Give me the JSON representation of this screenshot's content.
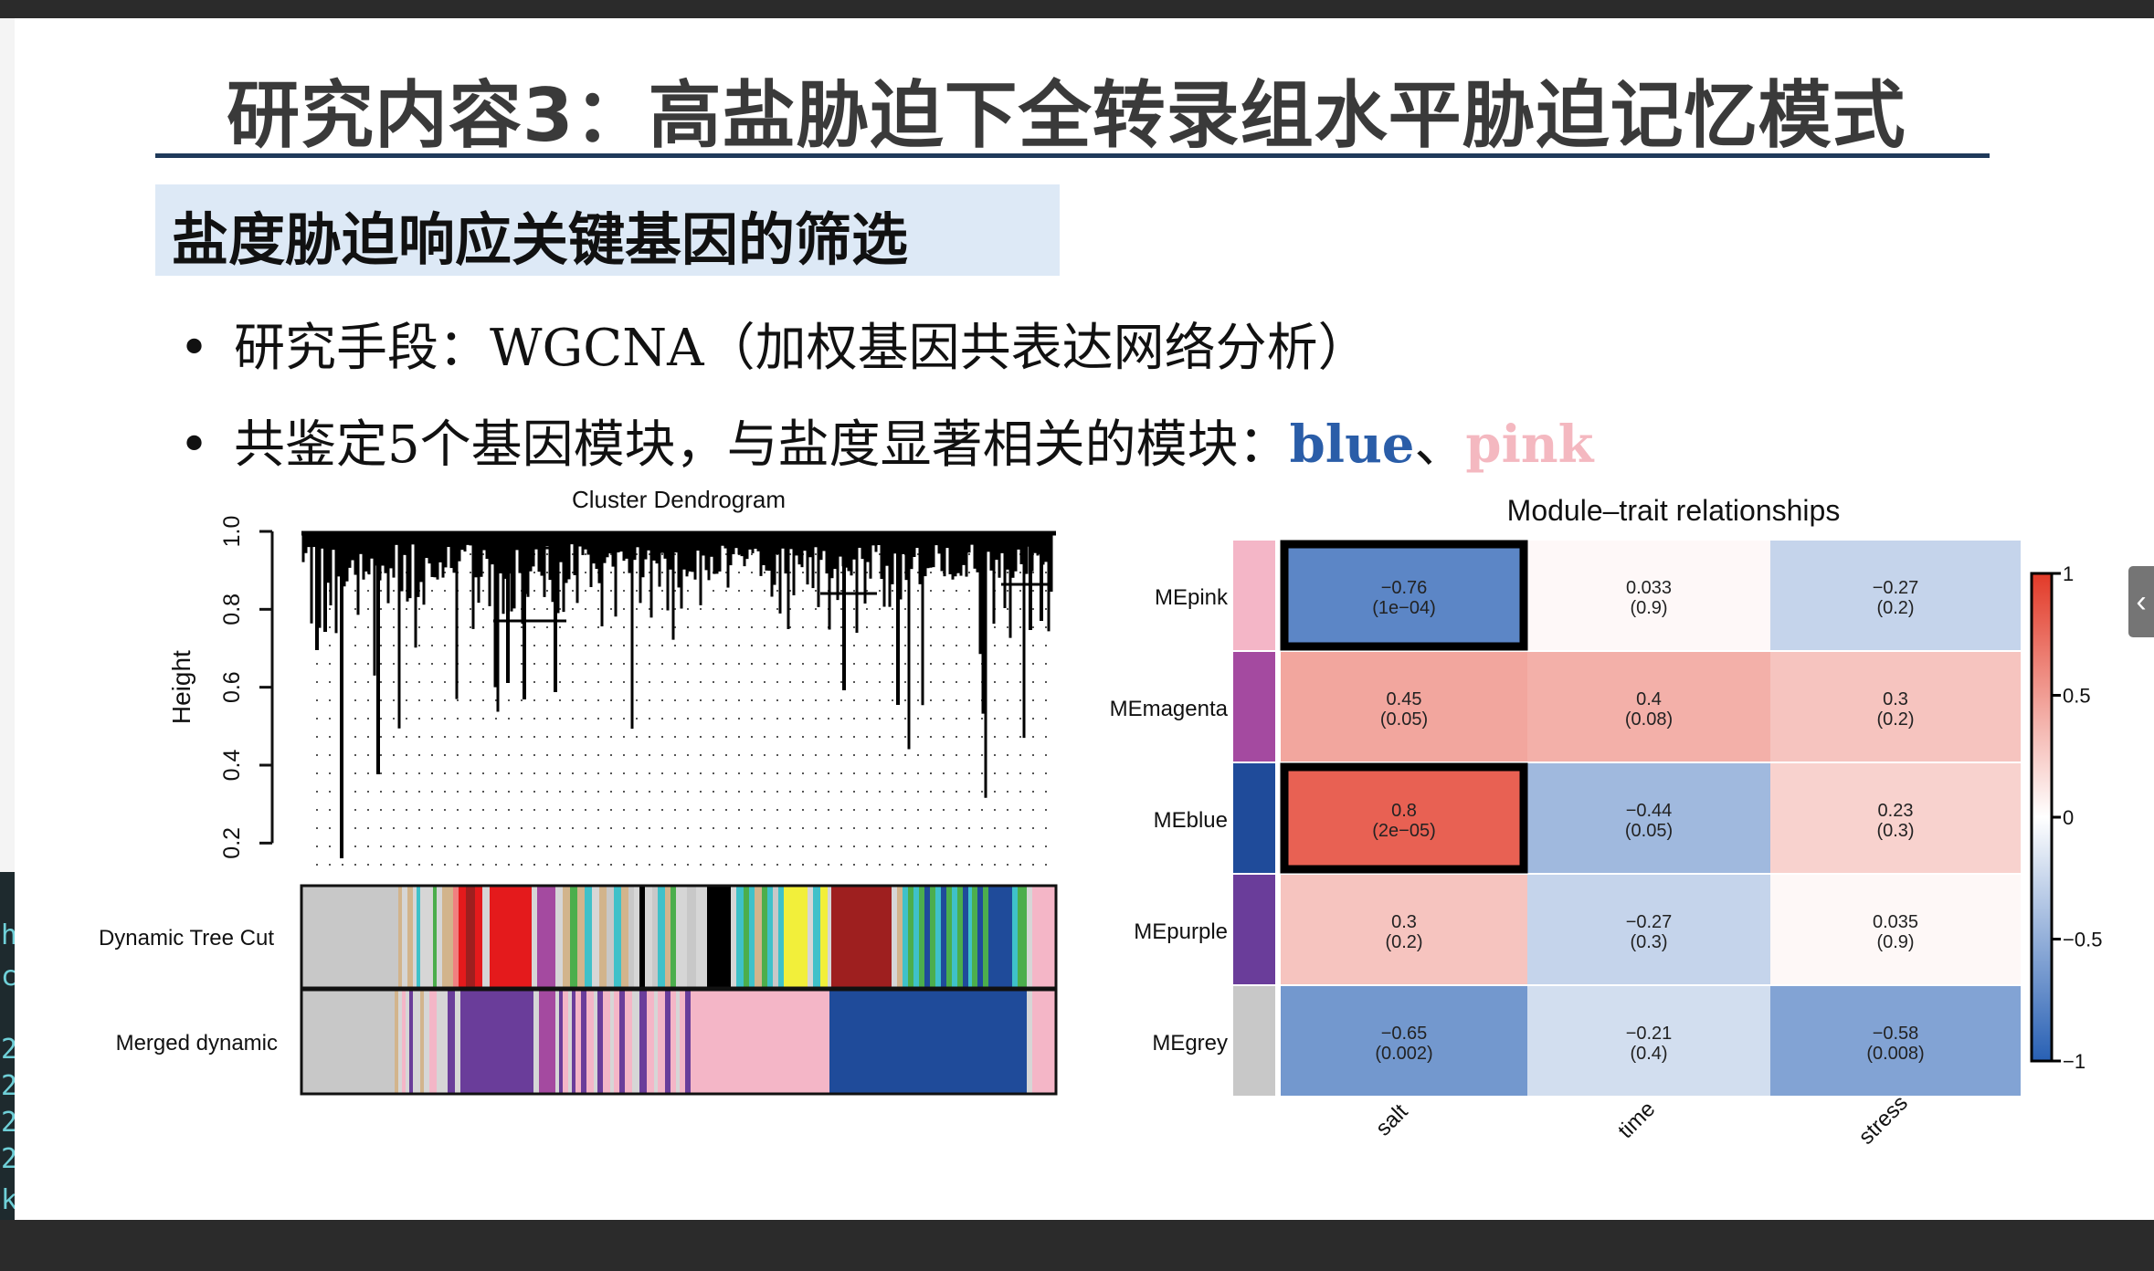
{
  "slide": {
    "title": "研究内容3：高盐胁迫下全转录组水平胁迫记忆模式",
    "subheading": "盐度胁迫响应关键基因的筛选",
    "bullets": [
      {
        "text": "研究手段：WGCNA（加权基因共表达网络分析）"
      },
      {
        "text_before": "共鉴定5个基因模块，与盐度显著相关的模块：",
        "blue_word": "blue",
        "separator": "、",
        "pink_word": "pink"
      }
    ]
  },
  "left_strip": {
    "chars": [
      "h",
      "c",
      "2",
      "2",
      "2",
      "2",
      "k"
    ]
  },
  "side_tab": {
    "icon": "chevron-left-icon",
    "glyph": "‹"
  },
  "chart_data": [
    {
      "type": "dendrogram",
      "title": "Cluster Dendrogram",
      "ylabel": "Height",
      "yticks": [
        "0.2",
        "0.4",
        "0.6",
        "0.8",
        "1.0"
      ],
      "ylim": [
        0.1,
        1.0
      ],
      "color_rows": [
        {
          "label": "Dynamic Tree Cut"
        },
        {
          "label": "Merged dynamic"
        }
      ],
      "bar_colors": {
        "grey": "#c8c8c8",
        "lgrey": "#d6d6d6",
        "purple": "#6a3d9a",
        "magenta": "#a44aa0",
        "red": "#e41a1c",
        "darkred": "#9e1f1f",
        "pink": "#f4b6c7",
        "blue": "#1f4b9a",
        "green": "#4cae4c",
        "yellow": "#f2ef3a",
        "turq": "#3fc1c9",
        "black": "#000000",
        "tan": "#d2b48c",
        "salmon": "#f08080"
      }
    },
    {
      "type": "heatmap",
      "title": "Module–trait relationships",
      "rows": [
        "MEpink",
        "MEmagenta",
        "MEblue",
        "MEpurple",
        "MEgrey"
      ],
      "row_colors": [
        "#f4b6c7",
        "#a44aa0",
        "#1f4b9a",
        "#6a3d9a",
        "#c8c8c8"
      ],
      "columns": [
        "salt",
        "time",
        "stress"
      ],
      "values": [
        [
          -0.76,
          0.033,
          -0.27
        ],
        [
          0.45,
          0.4,
          0.3
        ],
        [
          0.8,
          -0.44,
          0.23
        ],
        [
          0.3,
          -0.27,
          0.035
        ],
        [
          -0.65,
          -0.21,
          -0.58
        ]
      ],
      "cell_labels": [
        [
          [
            "−0.76",
            "(1e−04)"
          ],
          [
            "0.033",
            "(0.9)"
          ],
          [
            "−0.27",
            "(0.2)"
          ]
        ],
        [
          [
            "0.45",
            "(0.05)"
          ],
          [
            "0.4",
            "(0.08)"
          ],
          [
            "0.3",
            "(0.2)"
          ]
        ],
        [
          [
            "0.8",
            "(2e−05)"
          ],
          [
            "−0.44",
            "(0.05)"
          ],
          [
            "0.23",
            "(0.3)"
          ]
        ],
        [
          [
            "0.3",
            "(0.2)"
          ],
          [
            "−0.27",
            "(0.3)"
          ],
          [
            "0.035",
            "(0.9)"
          ]
        ],
        [
          [
            "−0.65",
            "(0.002)"
          ],
          [
            "−0.21",
            "(0.4)"
          ],
          [
            "−0.58",
            "(0.008)"
          ]
        ]
      ],
      "highlighted_cells": [
        [
          0,
          0
        ],
        [
          2,
          0
        ]
      ],
      "colorbar": {
        "ticks": [
          "1",
          "0.5",
          "0",
          "−0.5",
          "−1"
        ],
        "range": [
          -1,
          1
        ]
      }
    }
  ]
}
